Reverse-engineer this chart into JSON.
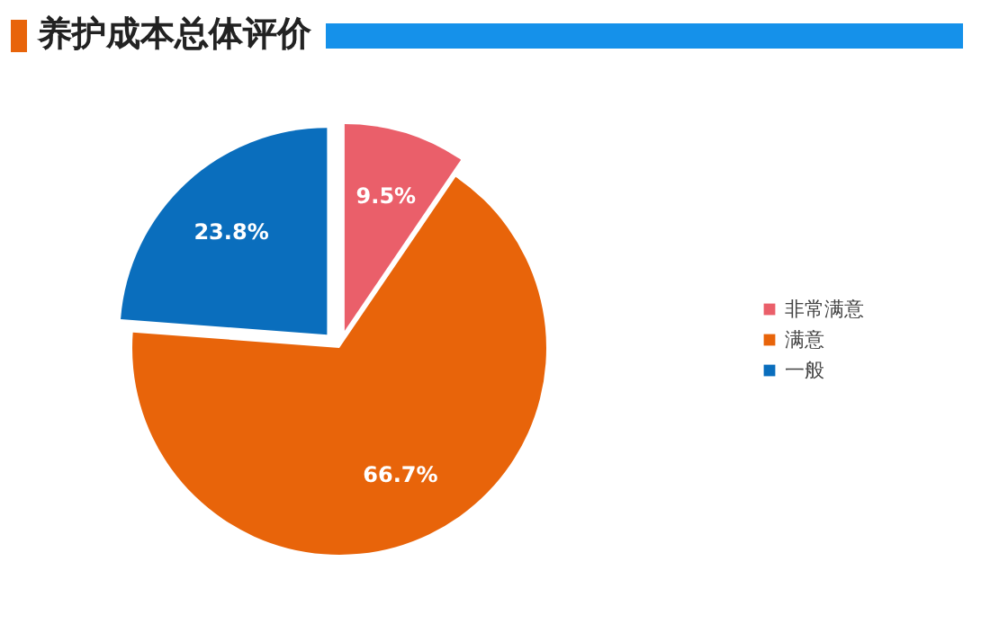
{
  "chart_data": {
    "type": "pie",
    "title": "养护成本总体评价",
    "categories": [
      "非常满意",
      "满意",
      "一般"
    ],
    "values": [
      9.5,
      66.7,
      23.8
    ],
    "colors": [
      "#ea5f6a",
      "#e8640a",
      "#0a6ebd"
    ],
    "value_labels": [
      "9.5%",
      "66.7%",
      "23.8%"
    ],
    "legend": "right"
  }
}
